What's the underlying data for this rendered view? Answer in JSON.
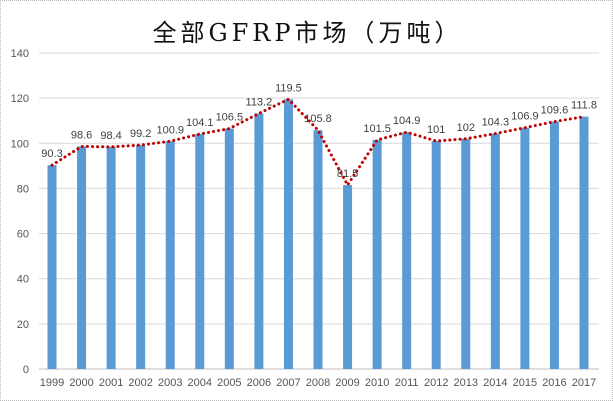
{
  "chart_data": {
    "type": "bar",
    "title": "全部GFRP市场（万吨）",
    "categories": [
      "1999",
      "2000",
      "2001",
      "2002",
      "2003",
      "2004",
      "2005",
      "2006",
      "2007",
      "2008",
      "2009",
      "2010",
      "2011",
      "2012",
      "2013",
      "2014",
      "2015",
      "2016",
      "2017"
    ],
    "values": [
      90.3,
      98.6,
      98.4,
      99.2,
      100.9,
      104.1,
      106.5,
      113.2,
      119.5,
      105.8,
      81.5,
      101.5,
      104.9,
      101,
      102,
      104.3,
      106.9,
      109.6,
      111.8
    ],
    "data_labels": [
      "90.3",
      "98.6",
      "98.4",
      "99.2",
      "100.9",
      "104.1",
      "106.5",
      "113.2",
      "119.5",
      "105.8",
      "81.5",
      "101.5",
      "104.9",
      "101",
      "102",
      "104.3",
      "106.9",
      "109.6",
      "111.8"
    ],
    "overlay": {
      "type": "line",
      "style": "dotted",
      "color": "#C00000",
      "values_source": "same as bars"
    },
    "ylim": [
      0,
      140
    ],
    "yticks": [
      "0",
      "20",
      "40",
      "60",
      "80",
      "100",
      "120",
      "140"
    ],
    "grid": true,
    "legend": "none",
    "bar_color": "#5B9BD5",
    "xlabel": "",
    "ylabel": ""
  }
}
